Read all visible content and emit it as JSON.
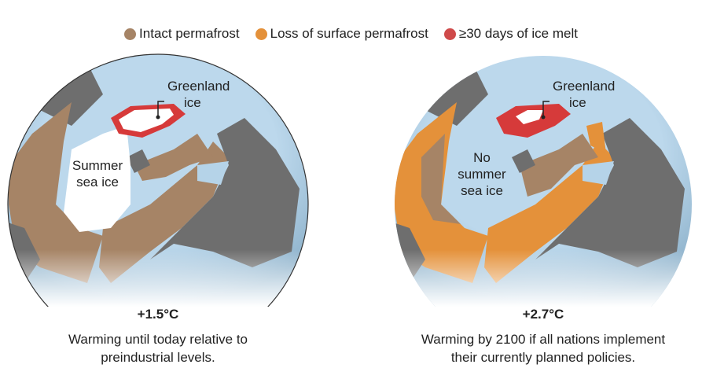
{
  "legend": [
    {
      "label": "Intact permafrost",
      "color": "#a68466"
    },
    {
      "label": "Loss of surface permafrost",
      "color": "#e4913a"
    },
    {
      "label": "≥30 days of ice melt",
      "color": "#cf4a4a"
    }
  ],
  "colors": {
    "ocean": "#b5d3e8",
    "land": "#6e6e6e",
    "ice": "#ffffff",
    "ice_melt": "#d63a3a"
  },
  "panels": [
    {
      "greenland_label": [
        "Greenland",
        "ice"
      ],
      "sea_label": [
        "Summer",
        "sea ice"
      ],
      "temp": "+1.5°C",
      "caption": [
        "Warming until today relative to",
        "preindustrial levels."
      ]
    },
    {
      "greenland_label": [
        "Greenland",
        "ice"
      ],
      "sea_label": [
        "No",
        "summer",
        "sea ice"
      ],
      "temp": "+2.7°C",
      "caption": [
        "Warming by 2100 if all nations implement",
        "their currently planned policies."
      ]
    }
  ]
}
